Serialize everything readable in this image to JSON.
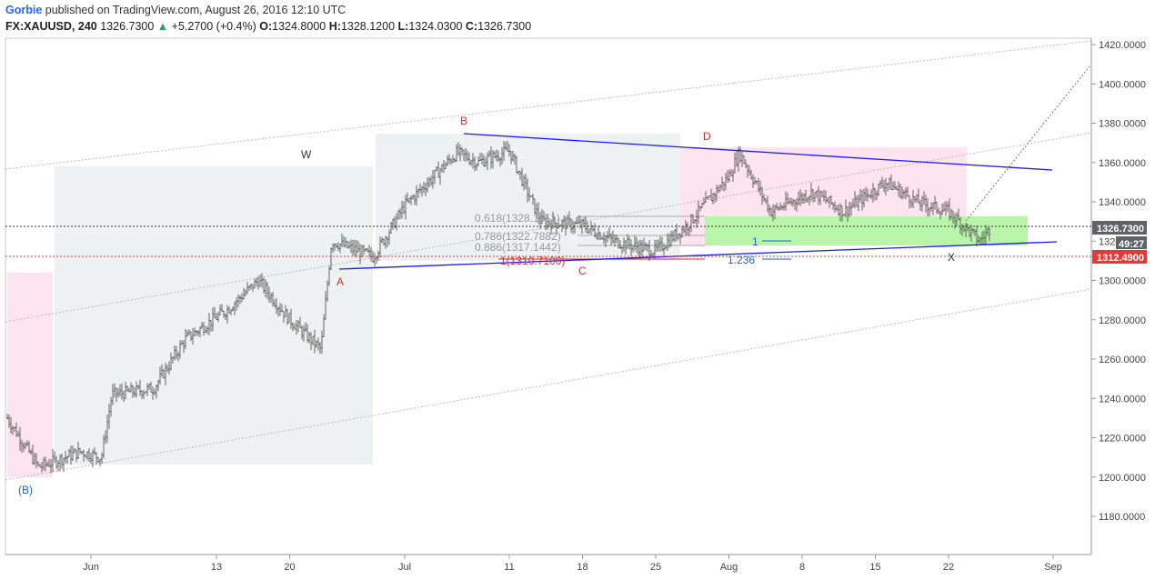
{
  "header": {
    "author": "Gorbie",
    "published_text": "published on TradingView.com, August 26, 2016 12:10 UTC",
    "symbol": "FX:XAUUSD, 240",
    "last": "1326.7300",
    "change_arrow": "▲",
    "change": "+5.2700 (+0.4%)",
    "o_label": "O:",
    "o_value": "1324.8000",
    "h_label": "H:",
    "h_value": "1328.1200",
    "l_label": "L:",
    "l_value": "1324.0300",
    "c_label": "C:",
    "c_value": "1326.7300"
  },
  "price_tags": {
    "last": "1326.7300",
    "countdown": "49:27",
    "level": "1312.4900"
  },
  "fib_labels": {
    "f0618": "0.618(1328.1151)",
    "f0786": "0.786(1322.7882)",
    "f0886": "0.886(1317.1442)",
    "f1": "1(1310.7100)",
    "ext1": "1",
    "ext1236": "1.236"
  },
  "colors": {
    "up": "#26a65b",
    "down": "#e53935",
    "bars": "#555555",
    "trendline": "#1a1aff",
    "wave_red": "#d32f2f",
    "wave_blue": "#1565c0",
    "green_zone": "#b9f5a9",
    "pink_zone": "#fde4ee",
    "gray_zone": "#eef1f1",
    "price_tag": "#5f6368",
    "level_tag": "#e53935"
  },
  "chart_data": {
    "type": "candlestick-ohlc",
    "symbol": "FX:XAUUSD",
    "timeframe": "240",
    "ylim": [
      1160,
      1425
    ],
    "y_ticks": [
      "1420.0000",
      "1400.0000",
      "1380.0000",
      "1360.0000",
      "1340.0000",
      "1320.0000",
      "1300.0000",
      "1280.0000",
      "1260.0000",
      "1240.0000",
      "1220.0000",
      "1200.0000",
      "1180.0000"
    ],
    "x_ticks": [
      "Jun",
      "13",
      "20",
      "Jul",
      "11",
      "18",
      "25",
      "Aug",
      "8",
      "15",
      "22",
      "Sep"
    ],
    "wave_labels": [
      "(B)",
      "W",
      "A",
      "B",
      "C",
      "D",
      "X"
    ],
    "price_path": [
      {
        "date": "2016-05-24",
        "close": 1230
      },
      {
        "date": "2016-05-27",
        "close": 1205
      },
      {
        "date": "2016-05-31",
        "close": 1213
      },
      {
        "date": "2016-06-02",
        "close": 1210
      },
      {
        "date": "2016-06-03",
        "close": 1242
      },
      {
        "date": "2016-06-07",
        "close": 1245
      },
      {
        "date": "2016-06-10",
        "close": 1270
      },
      {
        "date": "2016-06-14",
        "close": 1285
      },
      {
        "date": "2016-06-17",
        "close": 1300
      },
      {
        "date": "2016-06-20",
        "close": 1280
      },
      {
        "date": "2016-06-23",
        "close": 1265
      },
      {
        "date": "2016-06-24",
        "close": 1320
      },
      {
        "date": "2016-06-28",
        "close": 1312
      },
      {
        "date": "2016-07-01",
        "close": 1338
      },
      {
        "date": "2016-07-06",
        "close": 1365
      },
      {
        "date": "2016-07-08",
        "close": 1360
      },
      {
        "date": "2016-07-11",
        "close": 1366
      },
      {
        "date": "2016-07-14",
        "close": 1330
      },
      {
        "date": "2016-07-18",
        "close": 1328
      },
      {
        "date": "2016-07-21",
        "close": 1320
      },
      {
        "date": "2016-07-25",
        "close": 1315
      },
      {
        "date": "2016-07-28",
        "close": 1328
      },
      {
        "date": "2016-08-01",
        "close": 1353
      },
      {
        "date": "2016-08-02",
        "close": 1365
      },
      {
        "date": "2016-08-05",
        "close": 1335
      },
      {
        "date": "2016-08-09",
        "close": 1345
      },
      {
        "date": "2016-08-12",
        "close": 1335
      },
      {
        "date": "2016-08-16",
        "close": 1350
      },
      {
        "date": "2016-08-19",
        "close": 1340
      },
      {
        "date": "2016-08-22",
        "close": 1335
      },
      {
        "date": "2016-08-24",
        "close": 1325
      },
      {
        "date": "2016-08-25",
        "close": 1320
      },
      {
        "date": "2016-08-26",
        "close": 1326.73
      }
    ]
  }
}
